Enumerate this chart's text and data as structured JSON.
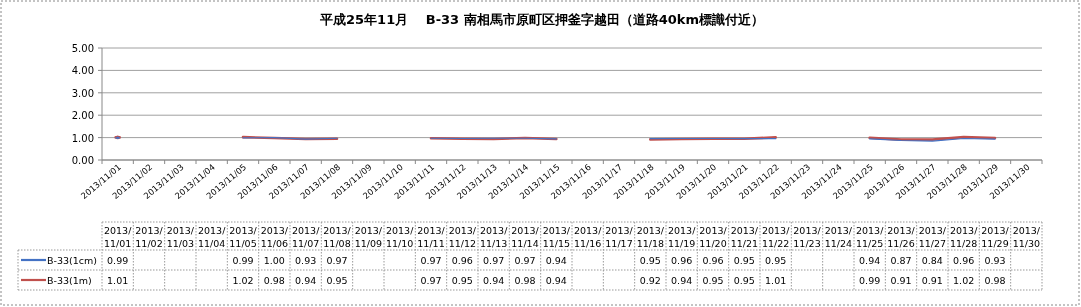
{
  "chart_data": {
    "type": "line",
    "title": "平成25年11月　 B-33 南相馬市原町区押釜字越田（道路40km標識付近）",
    "categories": [
      "2013/11/01",
      "2013/11/02",
      "2013/11/03",
      "2013/11/04",
      "2013/11/05",
      "2013/11/06",
      "2013/11/07",
      "2013/11/08",
      "2013/11/09",
      "2013/11/10",
      "2013/11/11",
      "2013/11/12",
      "2013/11/13",
      "2013/11/14",
      "2013/11/15",
      "2013/11/16",
      "2013/11/17",
      "2013/11/18",
      "2013/11/19",
      "2013/11/20",
      "2013/11/21",
      "2013/11/22",
      "2013/11/23",
      "2013/11/24",
      "2013/11/25",
      "2013/11/26",
      "2013/11/27",
      "2013/11/28",
      "2013/11/29",
      "2013/11/30"
    ],
    "series": [
      {
        "name": "B-33(1cm)",
        "color": "#4472c4",
        "values": [
          0.99,
          null,
          null,
          null,
          0.99,
          1.0,
          0.93,
          0.97,
          null,
          null,
          0.97,
          0.96,
          0.97,
          0.97,
          0.94,
          null,
          null,
          0.95,
          0.96,
          0.96,
          0.95,
          0.95,
          null,
          null,
          0.94,
          0.87,
          0.84,
          0.96,
          0.93,
          null
        ],
        "value_labels": [
          "0.99",
          null,
          null,
          null,
          "0.99",
          "1.00",
          "0.93",
          "0.97",
          null,
          null,
          "0.97",
          "0.96",
          "0.97",
          "0.97",
          "0.94",
          null,
          null,
          "0.95",
          "0.96",
          "0.96",
          "0.95",
          "0.95",
          null,
          null,
          "0.94",
          "0.87",
          "0.84",
          "0.96",
          "0.93",
          null
        ]
      },
      {
        "name": "B-33(1m)",
        "color": "#c0504d",
        "values": [
          1.01,
          null,
          null,
          null,
          1.02,
          0.98,
          0.94,
          0.95,
          null,
          null,
          0.97,
          0.95,
          0.94,
          0.98,
          0.94,
          null,
          null,
          0.92,
          0.94,
          0.95,
          0.95,
          1.01,
          null,
          null,
          0.99,
          0.91,
          0.91,
          1.02,
          0.98,
          null
        ],
        "value_labels": [
          "1.01",
          null,
          null,
          null,
          "1.02",
          "0.98",
          "0.94",
          "0.95",
          null,
          null,
          "0.97",
          "0.95",
          "0.94",
          "0.98",
          "0.94",
          null,
          null,
          "0.92",
          "0.94",
          "0.95",
          "0.95",
          "1.01",
          null,
          null,
          "0.99",
          "0.91",
          "0.91",
          "1.02",
          "0.98",
          null
        ]
      }
    ],
    "ylim": [
      0,
      5
    ],
    "yticks": [
      {
        "value": 0,
        "label": "0.00"
      },
      {
        "value": 1,
        "label": "1.00"
      },
      {
        "value": 2,
        "label": "2.00"
      },
      {
        "value": 3,
        "label": "3.00"
      },
      {
        "value": 4,
        "label": "4.00"
      },
      {
        "value": 5,
        "label": "5.00"
      }
    ],
    "grid": "y",
    "legend": "bottom",
    "marker": "none",
    "line_style": "solid"
  }
}
